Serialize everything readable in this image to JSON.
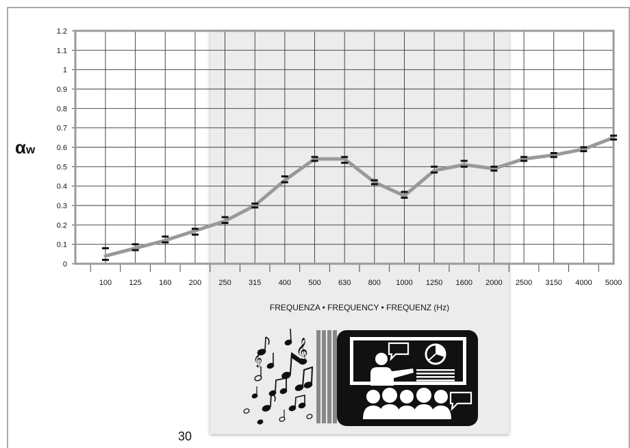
{
  "chart_data": {
    "type": "line",
    "title": "",
    "xlabel": "FREQUENZA • FREQUENCY • FREQUENZ (Hz)",
    "ylabel_main": "α",
    "ylabel_sub": "w",
    "x": [
      "100",
      "125",
      "160",
      "200",
      "250",
      "315",
      "400",
      "500",
      "630",
      "800",
      "1000",
      "1250",
      "1600",
      "2000",
      "2500",
      "3150",
      "4000",
      "5000"
    ],
    "yticks": [
      "0",
      "0.1",
      "0.2",
      "0.3",
      "0.4",
      "0.5",
      "0.6",
      "0.7",
      "0.8",
      "0.9",
      "1",
      "1.1",
      "1.2"
    ],
    "ylim": [
      0,
      1.2
    ],
    "grid": true,
    "series": [
      {
        "values": [
          0.04,
          0.08,
          0.12,
          0.17,
          0.22,
          0.3,
          0.43,
          0.54,
          0.54,
          0.42,
          0.35,
          0.48,
          0.51,
          0.49,
          0.54,
          0.56,
          0.59,
          0.65
        ],
        "err_low": [
          0.02,
          0.07,
          0.11,
          0.15,
          0.21,
          0.29,
          0.42,
          0.53,
          0.52,
          0.41,
          0.34,
          0.47,
          0.5,
          0.48,
          0.53,
          0.55,
          0.58,
          0.64
        ],
        "err_high": [
          0.08,
          0.1,
          0.14,
          0.18,
          0.24,
          0.31,
          0.45,
          0.55,
          0.55,
          0.43,
          0.37,
          0.5,
          0.53,
          0.5,
          0.55,
          0.57,
          0.6,
          0.66
        ],
        "color": "#999999"
      }
    ],
    "band": {
      "from": "250",
      "to": "2000"
    }
  },
  "colors": {
    "line": "#999999",
    "band": "#ececec",
    "pictogram": "#111111",
    "error_bar": "#111111"
  },
  "icons": [
    "music-notes-icon",
    "classroom-presentation-icon"
  ],
  "page_number": "30"
}
